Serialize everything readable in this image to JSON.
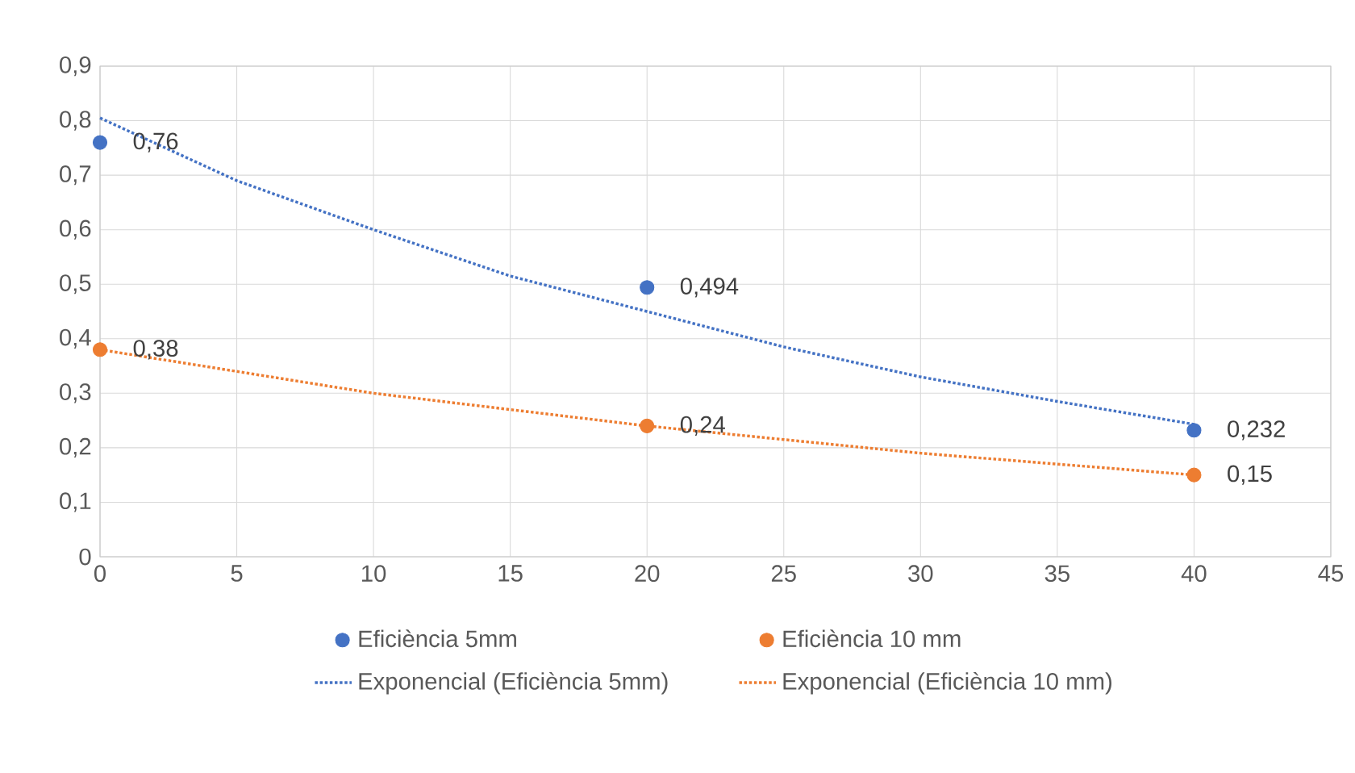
{
  "chart_data": {
    "type": "scatter",
    "grid": true,
    "legend": "bottom",
    "xlim": [
      0,
      45
    ],
    "xticks": [
      0,
      5,
      10,
      15,
      20,
      25,
      30,
      35,
      40,
      45
    ],
    "ylim": [
      0,
      0.9
    ],
    "yticks": [
      {
        "value": 0,
        "label": "0"
      },
      {
        "value": 0.1,
        "label": "0,1"
      },
      {
        "value": 0.2,
        "label": "0,2"
      },
      {
        "value": 0.3,
        "label": "0,3"
      },
      {
        "value": 0.4,
        "label": "0,4"
      },
      {
        "value": 0.5,
        "label": "0,5"
      },
      {
        "value": 0.6,
        "label": "0,6"
      },
      {
        "value": 0.7,
        "label": "0,7"
      },
      {
        "value": 0.8,
        "label": "0,8"
      },
      {
        "value": 0.9,
        "label": "0,9"
      }
    ],
    "series": [
      {
        "name": "Eficiència 5mm",
        "marker": "circle",
        "color": "#4472c4",
        "x": [
          0,
          20,
          40
        ],
        "values": [
          0.76,
          0.494,
          0.232
        ],
        "value_labels": [
          "0,76",
          "0,494",
          "0,232"
        ]
      },
      {
        "name": "Eficiència 10 mm",
        "marker": "circle",
        "color": "#ed7d31",
        "x": [
          0,
          20,
          40
        ],
        "values": [
          0.38,
          0.24,
          0.15
        ],
        "value_labels": [
          "0,38",
          "0,24",
          "0,15"
        ]
      },
      {
        "name": "Exponencial (Eficiència 5mm)",
        "type": "line",
        "marker": "none",
        "line_style": "dotted",
        "color": "#4472c4",
        "x": [
          0,
          5,
          10,
          15,
          20,
          25,
          30,
          35,
          40
        ],
        "values": [
          0.805,
          0.69,
          0.6,
          0.515,
          0.45,
          0.385,
          0.33,
          0.285,
          0.243
        ]
      },
      {
        "name": "Exponencial (Eficiència 10 mm)",
        "type": "line",
        "marker": "none",
        "line_style": "dotted",
        "color": "#ed7d31",
        "x": [
          0,
          5,
          10,
          15,
          20,
          25,
          30,
          35,
          40
        ],
        "values": [
          0.38,
          0.34,
          0.3,
          0.27,
          0.24,
          0.215,
          0.19,
          0.17,
          0.15
        ]
      }
    ]
  }
}
